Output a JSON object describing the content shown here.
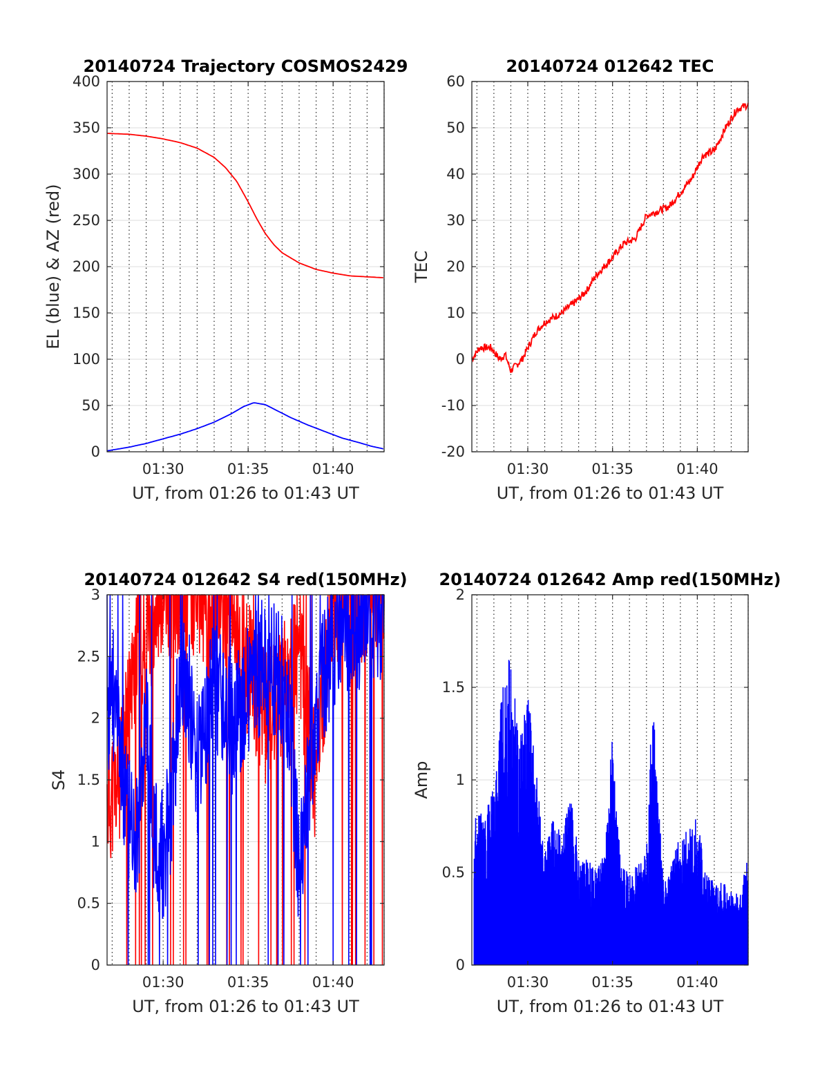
{
  "colors": {
    "az": "#ff0000",
    "el": "#0000ff",
    "tec": "#ff0000",
    "s4_red": "#ff0000",
    "s4_blue": "#0000ff",
    "amp": "#0000ff",
    "axis": "#262626",
    "grid": "#dcdcdc"
  },
  "chart_data": [
    {
      "type": "line",
      "title": "20140724 Trajectory COSMOS2429",
      "xlabel": "UT, from 01:26 to 01:43 UT",
      "ylabel": "EL (blue) & AZ (red)",
      "xlim": [
        "01:26:42",
        "01:43:00"
      ],
      "ylim": [
        0,
        400
      ],
      "xticks": [
        "01:30",
        "01:35",
        "01:40"
      ],
      "yticks": [
        "0",
        "50",
        "100",
        "150",
        "200",
        "250",
        "300",
        "350",
        "400"
      ],
      "grid": true,
      "series": [
        {
          "color": "red",
          "x": [
            "01:26:42",
            "01:28:00",
            "01:29:00",
            "01:30:00",
            "01:31:00",
            "01:32:00",
            "01:33:00",
            "01:33:40",
            "01:34:20",
            "01:35:00",
            "01:35:30",
            "01:36:00",
            "01:36:30",
            "01:37:00",
            "01:38:00",
            "01:39:00",
            "01:40:00",
            "01:41:00",
            "01:42:00",
            "01:43:00"
          ],
          "y": [
            344,
            343,
            341,
            338,
            334,
            328,
            318,
            307,
            292,
            270,
            252,
            236,
            224,
            215,
            204,
            197,
            193,
            190,
            189,
            188
          ]
        },
        {
          "color": "blue",
          "x": [
            "01:26:42",
            "01:28:00",
            "01:29:00",
            "01:30:00",
            "01:31:00",
            "01:32:00",
            "01:33:00",
            "01:34:00",
            "01:34:45",
            "01:35:20",
            "01:36:00",
            "01:36:45",
            "01:37:30",
            "01:38:30",
            "01:39:30",
            "01:40:30",
            "01:41:30",
            "01:42:15",
            "01:43:00"
          ],
          "y": [
            1,
            5,
            9,
            14,
            19,
            25,
            32,
            41,
            49,
            53,
            51,
            44,
            37,
            29,
            22,
            15,
            10,
            6,
            3
          ]
        }
      ]
    },
    {
      "type": "line",
      "title": "20140724 012642 TEC",
      "xlabel": "UT, from 01:26 to 01:43 UT",
      "ylabel": "TEC",
      "xlim": [
        "01:26:42",
        "01:43:00"
      ],
      "ylim": [
        -20,
        60
      ],
      "xticks": [
        "01:30",
        "01:35",
        "01:40"
      ],
      "yticks": [
        "-20",
        "-10",
        "0",
        "10",
        "20",
        "30",
        "40",
        "50",
        "60"
      ],
      "grid": true,
      "series": [
        {
          "color": "red",
          "x": [
            "01:26:42",
            "01:27:10",
            "01:27:50",
            "01:28:20",
            "01:28:40",
            "01:29:00",
            "01:29:40",
            "01:30:30",
            "01:31:00",
            "01:32:00",
            "01:33:00",
            "01:33:30",
            "01:34:00",
            "01:34:30",
            "01:35:00",
            "01:35:40",
            "01:36:20",
            "01:37:00",
            "01:37:40",
            "01:38:20",
            "01:39:00",
            "01:39:40",
            "01:40:20",
            "01:41:00",
            "01:41:40",
            "01:42:20",
            "01:43:00"
          ],
          "y": [
            0,
            2.5,
            2.5,
            0,
            1,
            -2.5,
            0,
            6,
            8,
            10,
            13,
            15,
            18,
            20,
            22,
            25,
            26,
            31,
            32,
            33,
            36,
            39,
            44,
            45,
            50,
            54,
            55
          ]
        }
      ]
    },
    {
      "type": "line",
      "title": "20140724 012642 S4 red(150MHz)",
      "xlabel": "UT, from 01:26 to 01:43 UT",
      "ylabel": "S4",
      "xlim": [
        "01:26:42",
        "01:43:00"
      ],
      "ylim": [
        0,
        3
      ],
      "xticks": [
        "01:30",
        "01:35",
        "01:40"
      ],
      "yticks": [
        "0",
        "0.5",
        "1",
        "1.5",
        "2",
        "2.5",
        "3"
      ],
      "grid": true,
      "series": [
        {
          "color": "red",
          "x": [
            "01:26:42",
            "01:27:00",
            "01:27:30",
            "01:28:00",
            "01:28:30",
            "01:29:00",
            "01:29:30",
            "01:30:00",
            "01:31:00",
            "01:32:00",
            "01:33:00",
            "01:34:00",
            "01:35:00",
            "01:36:00",
            "01:37:00",
            "01:38:00",
            "01:39:00",
            "01:40:00",
            "01:41:00",
            "01:42:00",
            "01:43:00"
          ],
          "y": [
            1.3,
            1.4,
            1.5,
            2.1,
            2.6,
            2.5,
            3.0,
            3.0,
            3.0,
            3.0,
            3.0,
            2.8,
            2.4,
            2.0,
            2.2,
            2.5,
            1.5,
            3.0,
            3.0,
            3.0,
            3.0
          ]
        },
        {
          "color": "blue",
          "x": [
            "01:26:42",
            "01:27:00",
            "01:27:30",
            "01:28:00",
            "01:28:30",
            "01:29:00",
            "01:29:30",
            "01:30:00",
            "01:30:30",
            "01:31:00",
            "01:31:30",
            "01:32:00",
            "01:33:00",
            "01:34:00",
            "01:35:00",
            "01:36:00",
            "01:37:00",
            "01:37:30",
            "01:38:00",
            "01:39:00",
            "01:40:00",
            "01:41:00",
            "01:42:00",
            "01:43:00"
          ],
          "y": [
            2.0,
            2.3,
            1.6,
            1.2,
            1.1,
            2.0,
            1.0,
            0.9,
            1.3,
            2.4,
            2.2,
            1.6,
            2.3,
            1.9,
            2.2,
            2.5,
            2.3,
            1.9,
            0.7,
            2.1,
            2.6,
            2.8,
            2.7,
            2.9
          ]
        }
      ]
    },
    {
      "type": "line",
      "title": "20140724 012642 Amp red(150MHz)",
      "xlabel": "UT, from 01:26 to 01:43 UT",
      "ylabel": "Amp",
      "xlim": [
        "01:26:42",
        "01:43:00"
      ],
      "ylim": [
        0,
        2
      ],
      "xticks": [
        "01:30",
        "01:35",
        "01:40"
      ],
      "yticks": [
        "0",
        "0.5",
        "1",
        "1.5",
        "2"
      ],
      "grid": true,
      "series": [
        {
          "color": "blue",
          "x": [
            "01:26:50",
            "01:27:30",
            "01:28:00",
            "01:28:30",
            "01:29:00",
            "01:29:30",
            "01:30:00",
            "01:30:30",
            "01:31:00",
            "01:31:30",
            "01:32:00",
            "01:32:30",
            "01:33:00",
            "01:34:00",
            "01:34:30",
            "01:35:00",
            "01:35:30",
            "01:36:00",
            "01:36:30",
            "01:37:00",
            "01:37:20",
            "01:37:40",
            "01:38:00",
            "01:39:00",
            "01:39:30",
            "01:40:00",
            "01:40:30",
            "01:41:00",
            "01:41:30",
            "01:42:00",
            "01:42:30",
            "01:43:00"
          ],
          "y": [
            0.8,
            0.85,
            1.0,
            1.5,
            1.72,
            1.2,
            1.47,
            1.1,
            0.6,
            0.8,
            0.7,
            0.95,
            0.6,
            0.55,
            0.6,
            1.27,
            0.55,
            0.5,
            0.55,
            0.6,
            1.42,
            1.1,
            0.45,
            0.7,
            0.75,
            0.8,
            0.5,
            0.45,
            0.45,
            0.4,
            0.38,
            0.6
          ]
        }
      ]
    }
  ]
}
